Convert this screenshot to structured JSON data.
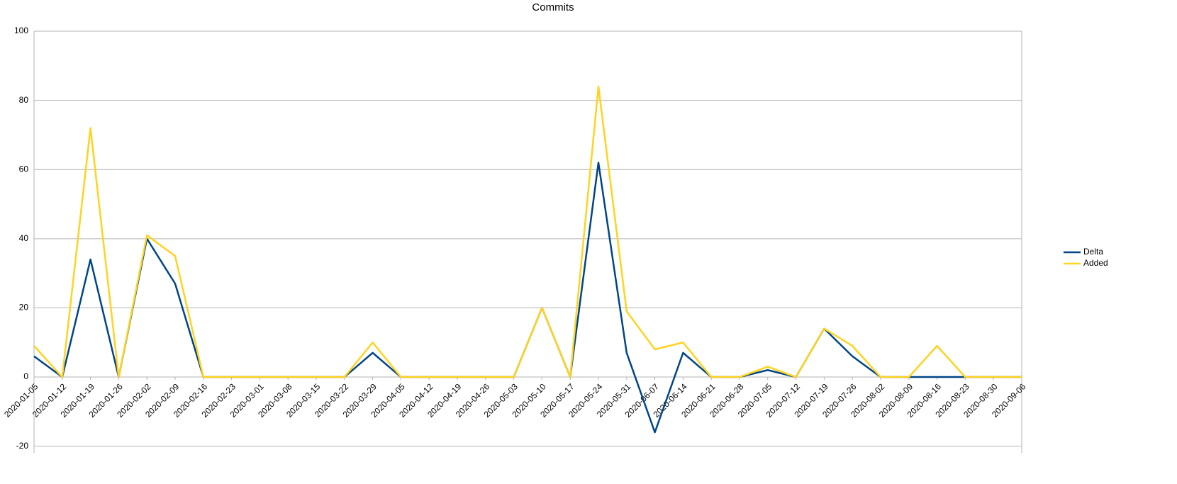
{
  "chart_data": {
    "type": "line",
    "title": "Commits",
    "categories": [
      "2020-01-05",
      "2020-01-12",
      "2020-01-19",
      "2020-01-26",
      "2020-02-02",
      "2020-02-09",
      "2020-02-16",
      "2020-02-23",
      "2020-03-01",
      "2020-03-08",
      "2020-03-15",
      "2020-03-22",
      "2020-03-29",
      "2020-04-05",
      "2020-04-12",
      "2020-04-19",
      "2020-04-26",
      "2020-05-03",
      "2020-05-10",
      "2020-05-17",
      "2020-05-24",
      "2020-05-31",
      "2020-06-07",
      "2020-06-14",
      "2020-06-21",
      "2020-06-28",
      "2020-07-05",
      "2020-07-12",
      "2020-07-19",
      "2020-07-26",
      "2020-08-02",
      "2020-08-09",
      "2020-08-16",
      "2020-08-23",
      "2020-08-30",
      "2020-09-06"
    ],
    "series": [
      {
        "name": "Delta",
        "color": "#004586",
        "values": [
          6,
          0,
          34,
          0,
          40,
          27,
          0,
          0,
          0,
          0,
          0,
          0,
          7,
          0,
          0,
          0,
          0,
          0,
          20,
          0,
          62,
          7,
          -16,
          7,
          0,
          0,
          2,
          0,
          14,
          6,
          0,
          0,
          0,
          0,
          0,
          0
        ]
      },
      {
        "name": "Added",
        "color": "#ffd320",
        "values": [
          9,
          0,
          72,
          0,
          41,
          35,
          0,
          0,
          0,
          0,
          0,
          0,
          10,
          0,
          0,
          0,
          0,
          0,
          20,
          0,
          84,
          19,
          8,
          10,
          0,
          0,
          3,
          0,
          14,
          9,
          0,
          0,
          9,
          0,
          0,
          0
        ]
      }
    ],
    "ylim": [
      -22,
      100
    ],
    "yticks": [
      -20,
      0,
      20,
      40,
      60,
      80,
      100
    ],
    "grid": true,
    "legend": "right"
  }
}
